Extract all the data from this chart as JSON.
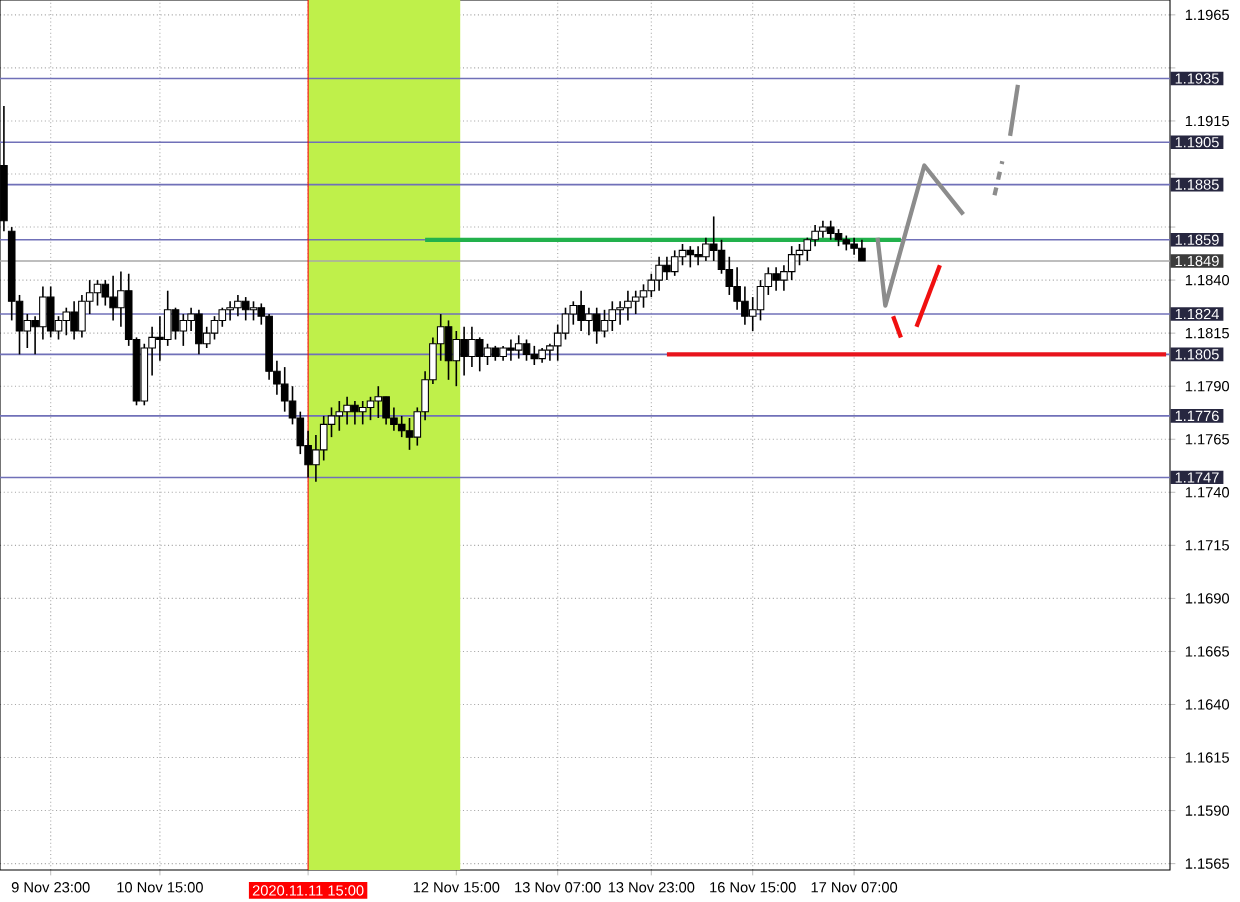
{
  "chart_data": {
    "type": "candlestick",
    "color": "#000000",
    "categories": [
      null,
      null,
      null,
      null,
      null,
      null,
      "9 Nov 23:00",
      null,
      null,
      null,
      null,
      null,
      null,
      null,
      null,
      null,
      null,
      null,
      null,
      null,
      "10 Nov 15:00",
      null,
      null,
      null,
      null,
      null,
      null,
      null,
      null,
      null,
      null,
      null,
      null,
      null,
      null,
      null,
      null,
      null,
      null,
      "2020.11.11 15:00",
      null,
      null,
      null,
      null,
      null,
      null,
      null,
      null,
      null,
      null,
      null,
      null,
      null,
      null,
      null,
      null,
      null,
      null,
      "12 Nov 15:00",
      null,
      null,
      null,
      null,
      null,
      null,
      null,
      null,
      null,
      null,
      null,
      null,
      "13 Nov 07:00",
      null,
      null,
      null,
      null,
      null,
      null,
      null,
      null,
      null,
      null,
      null,
      "13 Nov 23:00",
      null,
      null,
      null,
      null,
      null,
      null,
      null,
      null,
      null,
      null,
      null,
      null,
      "16 Nov 15:00",
      null,
      null,
      null,
      null,
      null,
      null,
      null,
      null,
      null,
      null,
      null,
      null,
      "17 Nov 07:00",
      null,
      null,
      null,
      null,
      null,
      null,
      null,
      null,
      null,
      null,
      null,
      null,
      null,
      null,
      null,
      null,
      null,
      null,
      null,
      null,
      null,
      null,
      null,
      null,
      null,
      null,
      null,
      null,
      null,
      null,
      null,
      null,
      null,
      null,
      null,
      null,
      null,
      null,
      null,
      null
    ],
    "ohlc": [
      [
        1.1894,
        1.1922,
        1.1863,
        1.1868
      ],
      [
        1.1863,
        1.1865,
        1.1821,
        1.183
      ],
      [
        1.183,
        1.1833,
        1.1805,
        1.1816
      ],
      [
        1.1816,
        1.1824,
        1.1808,
        1.1821
      ],
      [
        1.1821,
        1.1823,
        1.1805,
        1.1818
      ],
      [
        1.1818,
        1.1837,
        1.1812,
        1.1832
      ],
      [
        1.1832,
        1.1837,
        1.1813,
        1.1816
      ],
      [
        1.1816,
        1.1823,
        1.1812,
        1.1821
      ],
      [
        1.1821,
        1.1827,
        1.1814,
        1.1825
      ],
      [
        1.1825,
        1.183,
        1.1812,
        1.1816
      ],
      [
        1.1816,
        1.1833,
        1.1813,
        1.183
      ],
      [
        1.183,
        1.184,
        1.1824,
        1.1834
      ],
      [
        1.1834,
        1.184,
        1.1828,
        1.1838
      ],
      [
        1.1838,
        1.184,
        1.1828,
        1.1832
      ],
      [
        1.1832,
        1.1842,
        1.1821,
        1.1827
      ],
      [
        1.1827,
        1.1844,
        1.1818,
        1.1835
      ],
      [
        1.1835,
        1.1843,
        1.1809,
        1.1812
      ],
      [
        1.1812,
        1.1813,
        1.1781,
        1.1783
      ],
      [
        1.1783,
        1.181,
        1.1781,
        1.1808
      ],
      [
        1.1808,
        1.1818,
        1.1795,
        1.1813
      ],
      [
        1.1813,
        1.1823,
        1.1802,
        1.1812
      ],
      [
        1.1812,
        1.1835,
        1.1809,
        1.1826
      ],
      [
        1.1826,
        1.1827,
        1.1812,
        1.1816
      ],
      [
        1.1816,
        1.1824,
        1.1809,
        1.1821
      ],
      [
        1.1821,
        1.1827,
        1.1816,
        1.1824
      ],
      [
        1.1824,
        1.1826,
        1.1805,
        1.181
      ],
      [
        1.181,
        1.1818,
        1.1808,
        1.1815
      ],
      [
        1.1815,
        1.1823,
        1.1812,
        1.1821
      ],
      [
        1.1821,
        1.1827,
        1.1818,
        1.1826
      ],
      [
        1.1826,
        1.183,
        1.1821,
        1.1827
      ],
      [
        1.1827,
        1.1833,
        1.1823,
        1.183
      ],
      [
        1.183,
        1.1832,
        1.1821,
        1.1826
      ],
      [
        1.1826,
        1.183,
        1.1821,
        1.1827
      ],
      [
        1.1827,
        1.1829,
        1.1819,
        1.1823
      ],
      [
        1.1823,
        1.1824,
        1.1793,
        1.1797
      ],
      [
        1.1797,
        1.1802,
        1.1786,
        1.1791
      ],
      [
        1.1791,
        1.1799,
        1.1778,
        1.1783
      ],
      [
        1.1783,
        1.179,
        1.1772,
        1.1775
      ],
      [
        1.1775,
        1.1778,
        1.1758,
        1.1762
      ],
      [
        1.1762,
        1.1769,
        1.1747,
        1.1753
      ],
      [
        1.1753,
        1.1767,
        1.1745,
        1.176
      ],
      [
        1.176,
        1.1776,
        1.1755,
        1.1772
      ],
      [
        1.1772,
        1.178,
        1.1766,
        1.1776
      ],
      [
        1.1776,
        1.1783,
        1.1769,
        1.1778
      ],
      [
        1.1778,
        1.1785,
        1.1772,
        1.1781
      ],
      [
        1.1781,
        1.1783,
        1.1772,
        1.1778
      ],
      [
        1.1778,
        1.1783,
        1.1772,
        1.178
      ],
      [
        1.178,
        1.1785,
        1.1774,
        1.1783
      ],
      [
        1.1783,
        1.179,
        1.1775,
        1.1785
      ],
      [
        1.1785,
        1.1785,
        1.1772,
        1.1775
      ],
      [
        1.1775,
        1.178,
        1.1769,
        1.1772
      ],
      [
        1.1772,
        1.1776,
        1.1766,
        1.1769
      ],
      [
        1.1769,
        1.1775,
        1.176,
        1.1766
      ],
      [
        1.1766,
        1.178,
        1.1762,
        1.1778
      ],
      [
        1.1778,
        1.1797,
        1.1774,
        1.1793
      ],
      [
        1.1793,
        1.1813,
        1.1791,
        1.181
      ],
      [
        1.181,
        1.1824,
        1.1802,
        1.1818
      ],
      [
        1.1818,
        1.1821,
        1.1793,
        1.1802
      ],
      [
        1.1802,
        1.1816,
        1.179,
        1.1812
      ],
      [
        1.1812,
        1.1818,
        1.1795,
        1.1804
      ],
      [
        1.1804,
        1.1818,
        1.1799,
        1.1812
      ],
      [
        1.1812,
        1.1813,
        1.1797,
        1.1804
      ],
      [
        1.1804,
        1.181,
        1.18,
        1.1808
      ],
      [
        1.1808,
        1.1809,
        1.1802,
        1.1804
      ],
      [
        1.1804,
        1.1809,
        1.1802,
        1.1808
      ],
      [
        1.1808,
        1.1812,
        1.1802,
        1.1807
      ],
      [
        1.1807,
        1.1814,
        1.1803,
        1.181
      ],
      [
        1.181,
        1.1812,
        1.1802,
        1.1805
      ],
      [
        1.1805,
        1.1809,
        1.18,
        1.1803
      ],
      [
        1.1803,
        1.1808,
        1.1801,
        1.1807
      ],
      [
        1.1807,
        1.181,
        1.1802,
        1.1809
      ],
      [
        1.1809,
        1.1819,
        1.1802,
        1.1815
      ],
      [
        1.1815,
        1.1827,
        1.1812,
        1.1824
      ],
      [
        1.1824,
        1.183,
        1.1819,
        1.1828
      ],
      [
        1.1828,
        1.1835,
        1.1816,
        1.1821
      ],
      [
        1.1821,
        1.1827,
        1.1814,
        1.1824
      ],
      [
        1.1824,
        1.1827,
        1.181,
        1.1816
      ],
      [
        1.1816,
        1.1826,
        1.1813,
        1.1821
      ],
      [
        1.1821,
        1.183,
        1.1816,
        1.1826
      ],
      [
        1.1826,
        1.183,
        1.1819,
        1.1827
      ],
      [
        1.1827,
        1.1835,
        1.1821,
        1.183
      ],
      [
        1.183,
        1.1835,
        1.1824,
        1.1832
      ],
      [
        1.1832,
        1.1838,
        1.1827,
        1.1835
      ],
      [
        1.1835,
        1.1843,
        1.1832,
        1.184
      ],
      [
        1.184,
        1.1851,
        1.1835,
        1.1847
      ],
      [
        1.1847,
        1.1851,
        1.184,
        1.1844
      ],
      [
        1.1844,
        1.1854,
        1.1842,
        1.1851
      ],
      [
        1.1851,
        1.1857,
        1.1847,
        1.1854
      ],
      [
        1.1854,
        1.1856,
        1.1846,
        1.1852
      ],
      [
        1.1852,
        1.1856,
        1.1847,
        1.1851
      ],
      [
        1.1851,
        1.186,
        1.1849,
        1.1857
      ],
      [
        1.1857,
        1.187,
        1.1849,
        1.1854
      ],
      [
        1.1854,
        1.1859,
        1.1843,
        1.1845
      ],
      [
        1.1845,
        1.1851,
        1.1833,
        1.1837
      ],
      [
        1.1837,
        1.1846,
        1.1826,
        1.183
      ],
      [
        1.183,
        1.1837,
        1.1819,
        1.1823
      ],
      [
        1.1823,
        1.1832,
        1.1816,
        1.1826
      ],
      [
        1.1826,
        1.184,
        1.1821,
        1.1837
      ],
      [
        1.1837,
        1.1846,
        1.1833,
        1.1843
      ],
      [
        1.1843,
        1.1846,
        1.1835,
        1.184
      ],
      [
        1.184,
        1.1847,
        1.1835,
        1.1844
      ],
      [
        1.1844,
        1.1856,
        1.184,
        1.1852
      ],
      [
        1.1852,
        1.1857,
        1.1847,
        1.1854
      ],
      [
        1.1854,
        1.186,
        1.1849,
        1.1859
      ],
      [
        1.1859,
        1.1866,
        1.1856,
        1.1863
      ],
      [
        1.1863,
        1.1868,
        1.186,
        1.1865
      ],
      [
        1.1865,
        1.1868,
        1.1859,
        1.1862
      ],
      [
        1.1862,
        1.1864,
        1.1856,
        1.1859
      ],
      [
        1.1859,
        1.1861,
        1.1854,
        1.1857
      ],
      [
        1.1857,
        1.186,
        1.1852,
        1.1855
      ],
      [
        1.1855,
        1.1859,
        1.1849,
        1.1849
      ],
      null,
      null,
      null,
      null,
      null,
      null,
      null,
      null,
      null,
      null,
      null,
      null,
      null,
      null,
      null,
      null,
      null,
      null,
      null,
      null,
      null,
      null,
      null,
      null,
      null,
      null,
      null,
      null,
      null,
      null,
      null,
      null,
      null,
      null,
      null,
      null,
      null,
      null,
      null
    ],
    "series": [
      {
        "type": "line",
        "color": "#22b14c",
        "values": [
          null,
          null,
          null,
          null,
          null,
          null,
          null,
          null,
          null,
          null,
          null,
          null,
          null,
          null,
          null,
          null,
          null,
          null,
          null,
          null,
          null,
          null,
          null,
          null,
          null,
          null,
          null,
          null,
          null,
          null,
          null,
          null,
          null,
          null,
          null,
          null,
          null,
          null,
          null,
          null,
          null,
          null,
          null,
          null,
          null,
          null,
          null,
          null,
          null,
          null,
          null,
          null,
          null,
          null,
          1.1859,
          1.1859,
          1.1859,
          1.1859,
          1.1859,
          1.1859,
          1.1859,
          1.1859,
          1.1859,
          1.1859,
          1.1859,
          1.1859,
          1.1859,
          1.1859,
          1.1859,
          1.1859,
          1.1859,
          1.1859,
          1.1859,
          1.1859,
          1.1859,
          1.1859,
          1.1859,
          1.1859,
          1.1859,
          1.1859,
          1.1859,
          1.1859,
          1.1859,
          1.1859,
          1.1859,
          1.1859,
          1.1859,
          1.1859,
          1.1859,
          1.1859,
          1.1859,
          1.1859,
          1.1859,
          1.1859,
          1.1859,
          1.1859,
          1.1859,
          1.1859,
          1.1859,
          1.1859,
          1.1859,
          1.1859,
          1.1859,
          1.1859,
          1.1859,
          1.1859,
          1.1859,
          1.1859,
          1.1859,
          1.1859,
          1.1859,
          1.1859,
          1.1859,
          1.1859,
          1.1859,
          1.1859,
          null,
          null,
          null,
          null,
          null,
          null,
          null,
          null,
          null,
          null,
          null,
          null,
          null,
          null,
          null,
          null,
          null,
          null,
          null,
          null,
          null,
          null,
          null,
          null,
          null,
          null,
          null,
          null,
          null,
          null,
          null,
          null,
          null,
          null
        ]
      },
      {
        "type": "line",
        "color": "#e8141c",
        "values": [
          null,
          null,
          null,
          null,
          null,
          null,
          null,
          null,
          null,
          null,
          null,
          null,
          null,
          null,
          null,
          null,
          null,
          null,
          null,
          null,
          null,
          null,
          null,
          null,
          null,
          null,
          null,
          null,
          null,
          null,
          null,
          null,
          null,
          null,
          null,
          null,
          null,
          null,
          null,
          null,
          null,
          null,
          null,
          null,
          null,
          null,
          null,
          null,
          null,
          null,
          null,
          null,
          null,
          null,
          null,
          null,
          null,
          null,
          null,
          null,
          null,
          null,
          null,
          null,
          null,
          null,
          null,
          null,
          null,
          null,
          null,
          null,
          null,
          null,
          null,
          null,
          null,
          null,
          null,
          null,
          null,
          null,
          null,
          null,
          null,
          1.1805,
          1.1805,
          1.1805,
          1.1805,
          1.1805,
          1.1805,
          1.1805,
          1.1805,
          1.1805,
          1.1805,
          1.1805,
          1.1805,
          1.1805,
          1.1805,
          1.1805,
          1.1805,
          1.1805,
          1.1805,
          1.1805,
          1.1805,
          1.1805,
          1.1805,
          1.1805,
          1.1805,
          1.1805,
          1.1805,
          1.1805,
          1.1805,
          1.1805,
          1.1805,
          1.1805,
          1.1805,
          1.1805,
          1.1805,
          1.1805,
          1.1805,
          1.1805,
          1.1805,
          1.1805,
          1.1805,
          1.1805,
          1.1805,
          1.1805,
          1.1805,
          1.1805,
          1.1805,
          1.1805,
          1.1805,
          1.1805,
          1.1805,
          1.1805,
          1.1805,
          1.1805,
          1.1805,
          1.1805,
          1.1805,
          1.1805,
          1.1805,
          1.1805,
          1.1805,
          1.1805,
          1.1805,
          1.1805,
          1.1805,
          1.1805
        ]
      },
      {
        "type": "line",
        "color": "#8c8c8c",
        "values": [
          null,
          null,
          null,
          null,
          null,
          null,
          null,
          null,
          null,
          null,
          null,
          null,
          null,
          null,
          null,
          null,
          null,
          null,
          null,
          null,
          null,
          null,
          null,
          null,
          null,
          null,
          null,
          null,
          null,
          null,
          null,
          null,
          null,
          null,
          null,
          null,
          null,
          null,
          null,
          null,
          null,
          null,
          null,
          null,
          null,
          null,
          null,
          null,
          null,
          null,
          null,
          null,
          null,
          null,
          null,
          null,
          null,
          null,
          null,
          null,
          null,
          null,
          null,
          null,
          null,
          null,
          null,
          null,
          null,
          null,
          null,
          null,
          null,
          null,
          null,
          null,
          null,
          null,
          null,
          null,
          null,
          null,
          null,
          null,
          null,
          null,
          null,
          null,
          null,
          null,
          null,
          null,
          null,
          null,
          null,
          null,
          null,
          null,
          null,
          null,
          null,
          null,
          null,
          null,
          null,
          null,
          null,
          null,
          null,
          null,
          null,
          null,
          1.186,
          1.1828,
          null,
          null,
          null,
          null,
          1.1894,
          null,
          null,
          null,
          null,
          1.1871,
          null,
          null,
          null,
          null,
          null,
          null,
          null,
          null,
          null,
          null,
          null,
          null,
          null,
          null,
          null,
          null,
          null,
          null,
          null,
          null,
          null,
          null,
          null,
          null,
          null,
          null
        ]
      },
      {
        "type": "line",
        "color": "#8c8c8c",
        "line_style": "dashed",
        "values": [
          null,
          null,
          null,
          null,
          null,
          null,
          null,
          null,
          null,
          null,
          null,
          null,
          null,
          null,
          null,
          null,
          null,
          null,
          null,
          null,
          null,
          null,
          null,
          null,
          null,
          null,
          null,
          null,
          null,
          null,
          null,
          null,
          null,
          null,
          null,
          null,
          null,
          null,
          null,
          null,
          null,
          null,
          null,
          null,
          null,
          null,
          null,
          null,
          null,
          null,
          null,
          null,
          null,
          null,
          null,
          null,
          null,
          null,
          null,
          null,
          null,
          null,
          null,
          null,
          null,
          null,
          null,
          null,
          null,
          null,
          null,
          null,
          null,
          null,
          null,
          null,
          null,
          null,
          null,
          null,
          null,
          null,
          null,
          null,
          null,
          null,
          null,
          null,
          null,
          null,
          null,
          null,
          null,
          null,
          null,
          null,
          null,
          null,
          null,
          null,
          null,
          null,
          null,
          null,
          null,
          null,
          null,
          null,
          null,
          null,
          null,
          null,
          null,
          null,
          null,
          null,
          null,
          null,
          null,
          null,
          null,
          null,
          null,
          null,
          null,
          null,
          null,
          1.188,
          1.1896,
          null,
          null,
          null,
          null,
          null,
          null,
          null,
          null,
          null,
          null,
          null,
          null,
          null,
          null,
          null,
          null,
          null,
          null,
          null,
          null,
          null
        ]
      },
      {
        "type": "line",
        "color": "#8c8c8c",
        "values": [
          null,
          null,
          null,
          null,
          null,
          null,
          null,
          null,
          null,
          null,
          null,
          null,
          null,
          null,
          null,
          null,
          null,
          null,
          null,
          null,
          null,
          null,
          null,
          null,
          null,
          null,
          null,
          null,
          null,
          null,
          null,
          null,
          null,
          null,
          null,
          null,
          null,
          null,
          null,
          null,
          null,
          null,
          null,
          null,
          null,
          null,
          null,
          null,
          null,
          null,
          null,
          null,
          null,
          null,
          null,
          null,
          null,
          null,
          null,
          null,
          null,
          null,
          null,
          null,
          null,
          null,
          null,
          null,
          null,
          null,
          null,
          null,
          null,
          null,
          null,
          null,
          null,
          null,
          null,
          null,
          null,
          null,
          null,
          null,
          null,
          null,
          null,
          null,
          null,
          null,
          null,
          null,
          null,
          null,
          null,
          null,
          null,
          null,
          null,
          null,
          null,
          null,
          null,
          null,
          null,
          null,
          null,
          null,
          null,
          null,
          null,
          null,
          null,
          null,
          null,
          null,
          null,
          null,
          null,
          null,
          null,
          null,
          null,
          null,
          null,
          null,
          null,
          null,
          null,
          1.1908,
          1.1932,
          null,
          null,
          null,
          null,
          null,
          null,
          null,
          null,
          null,
          null,
          null,
          null,
          null,
          null,
          null,
          null,
          null,
          null,
          null
        ]
      },
      {
        "type": "line",
        "color": "#f01010",
        "values": [
          null,
          null,
          null,
          null,
          null,
          null,
          null,
          null,
          null,
          null,
          null,
          null,
          null,
          null,
          null,
          null,
          null,
          null,
          null,
          null,
          null,
          null,
          null,
          null,
          null,
          null,
          null,
          null,
          null,
          null,
          null,
          null,
          null,
          null,
          null,
          null,
          null,
          null,
          null,
          null,
          null,
          null,
          null,
          null,
          null,
          null,
          null,
          null,
          null,
          null,
          null,
          null,
          null,
          null,
          null,
          null,
          null,
          null,
          null,
          null,
          null,
          null,
          null,
          null,
          null,
          null,
          null,
          null,
          null,
          null,
          null,
          null,
          null,
          null,
          null,
          null,
          null,
          null,
          null,
          null,
          null,
          null,
          null,
          null,
          null,
          null,
          null,
          null,
          null,
          null,
          null,
          null,
          null,
          null,
          null,
          null,
          null,
          null,
          null,
          null,
          null,
          null,
          null,
          null,
          null,
          null,
          null,
          null,
          null,
          null,
          null,
          null,
          null,
          null,
          1.1823,
          1.1813,
          null,
          null,
          null,
          null,
          null,
          null,
          null,
          null,
          null,
          null,
          null,
          null,
          null,
          null,
          null,
          null,
          null,
          null,
          null,
          null,
          null,
          null,
          null,
          null,
          null,
          null,
          null,
          null,
          null,
          null,
          null,
          null,
          null,
          null
        ]
      },
      {
        "type": "line",
        "color": "#f01010",
        "values": [
          null,
          null,
          null,
          null,
          null,
          null,
          null,
          null,
          null,
          null,
          null,
          null,
          null,
          null,
          null,
          null,
          null,
          null,
          null,
          null,
          null,
          null,
          null,
          null,
          null,
          null,
          null,
          null,
          null,
          null,
          null,
          null,
          null,
          null,
          null,
          null,
          null,
          null,
          null,
          null,
          null,
          null,
          null,
          null,
          null,
          null,
          null,
          null,
          null,
          null,
          null,
          null,
          null,
          null,
          null,
          null,
          null,
          null,
          null,
          null,
          null,
          null,
          null,
          null,
          null,
          null,
          null,
          null,
          null,
          null,
          null,
          null,
          null,
          null,
          null,
          null,
          null,
          null,
          null,
          null,
          null,
          null,
          null,
          null,
          null,
          null,
          null,
          null,
          null,
          null,
          null,
          null,
          null,
          null,
          null,
          null,
          null,
          null,
          null,
          null,
          null,
          null,
          null,
          null,
          null,
          null,
          null,
          null,
          null,
          null,
          null,
          null,
          null,
          null,
          null,
          null,
          null,
          1.1818,
          null,
          null,
          1.1847,
          null,
          null,
          null,
          null,
          null,
          null,
          null,
          null,
          null,
          null,
          null,
          null,
          null,
          null,
          null,
          null,
          null,
          null,
          null,
          null,
          null,
          null,
          null,
          null,
          null,
          null,
          null,
          null,
          null
        ]
      }
    ],
    "bands": [
      {
        "axis": "x",
        "from": "2020.11.11 15:00",
        "to": "12 Nov 15:00",
        "color": "#bff04a"
      }
    ],
    "ref_lines": [
      {
        "axis": "y",
        "value": 1.1935,
        "label": "1.1935",
        "color": "#7070b8"
      },
      {
        "axis": "y",
        "value": 1.1905,
        "label": "1.1905",
        "color": "#7070b8"
      },
      {
        "axis": "y",
        "value": 1.1885,
        "label": "1.1885",
        "color": "#7070b8"
      },
      {
        "axis": "y",
        "value": 1.1859,
        "label": "1.1859",
        "color": "#7070b8"
      },
      {
        "axis": "y",
        "value": 1.1849,
        "label": "1.1849",
        "color": "#a8a8a8"
      },
      {
        "axis": "y",
        "value": 1.1824,
        "label": "1.1824",
        "color": "#7070b8"
      },
      {
        "axis": "y",
        "value": 1.1805,
        "label": "1.1805",
        "color": "#7070b8"
      },
      {
        "axis": "y",
        "value": 1.1776,
        "label": "1.1776",
        "color": "#7070b8"
      },
      {
        "axis": "y",
        "value": 1.1747,
        "label": "1.1747",
        "color": "#7070b8"
      },
      {
        "axis": "x",
        "value": "2020.11.11 15:00",
        "color": "#ff0000"
      }
    ],
    "ylim": [
      1.1562,
      1.1972
    ],
    "yticks": [
      {
        "value": 1.1565,
        "label": "1.1565"
      },
      {
        "value": 1.159,
        "label": "1.1590"
      },
      {
        "value": 1.1615,
        "label": "1.1615"
      },
      {
        "value": 1.164,
        "label": "1.1640"
      },
      {
        "value": 1.1665,
        "label": "1.1665"
      },
      {
        "value": 1.169,
        "label": "1.1690"
      },
      {
        "value": 1.1715,
        "label": "1.1715"
      },
      {
        "value": 1.174,
        "label": "1.1740"
      },
      {
        "value": 1.1765,
        "label": "1.1765"
      },
      {
        "value": 1.179,
        "label": "1.1790"
      },
      {
        "value": 1.1815,
        "label": "1.1815"
      },
      {
        "value": 1.184,
        "label": "1.1840"
      },
      {
        "value": 1.1865,
        "label": null
      },
      {
        "value": 1.189,
        "label": null
      },
      {
        "value": 1.1915,
        "label": "1.1915"
      },
      {
        "value": 1.194,
        "label": null
      },
      {
        "value": 1.1965,
        "label": "1.1965"
      }
    ],
    "grid": true
  }
}
